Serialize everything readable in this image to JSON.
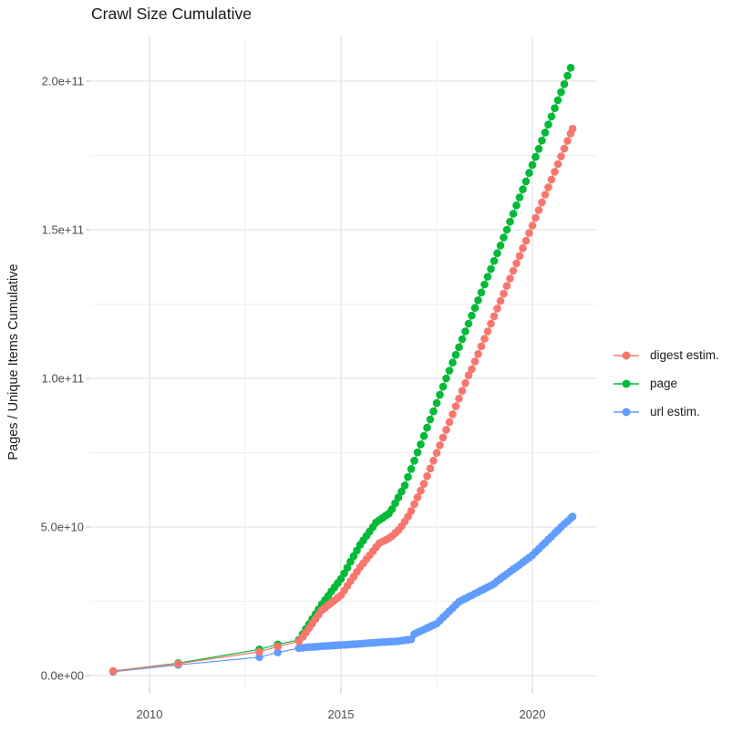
{
  "title": "Crawl Size Cumulative",
  "colors": {
    "digest": "#F8766D",
    "page": "#00BA38",
    "url": "#619CFF",
    "grid_major": "#e5e5e5",
    "grid_minor": "#f0f0f0",
    "tick_mark": "#c2c2c2",
    "tick_label": "#4d4d4d",
    "text": "#1a1a1a",
    "background": "#ffffff"
  },
  "y_axis": {
    "label": "Pages / Unique Items Cumulative",
    "ticks": [
      {
        "label": "0.0e+00",
        "value": 0
      },
      {
        "label": "5.0e+10",
        "value": 50
      },
      {
        "label": "1.0e+11",
        "value": 100
      },
      {
        "label": "1.5e+11",
        "value": 150
      },
      {
        "label": "2.0e+11",
        "value": 200
      }
    ],
    "minor_ticks": [
      25,
      75,
      125,
      175
    ]
  },
  "x_axis": {
    "ticks": [
      {
        "label": "2010",
        "value": 2010
      },
      {
        "label": "2015",
        "value": 2015
      },
      {
        "label": "2020",
        "value": 2020
      }
    ],
    "minor_ticks": [
      2012.5,
      2017.5
    ]
  },
  "legend": {
    "position": "right",
    "entries": [
      {
        "label": "digest estim.",
        "color": "#F8766D"
      },
      {
        "label": "page",
        "color": "#00BA38"
      },
      {
        "label": "url estim.",
        "color": "#619CFF"
      }
    ]
  },
  "chart_data": {
    "type": "line",
    "style": "points connected by thin lines (ggplot-like)",
    "title": "Crawl Size Cumulative",
    "xlabel": "",
    "ylabel": "Pages / Unique Items Cumulative",
    "x_unit": "year (decimal)",
    "value_unit_multiplier": 1000000000.0,
    "value_note": "point values below are in billions (multiply by 1e9 to get axis units)",
    "xlim": [
      2008.45,
      2021.7
    ],
    "ylim_billions": [
      -4,
      215
    ],
    "grid": true,
    "legend_position": "right",
    "draw_order": [
      "url estim.",
      "page",
      "digest estim."
    ],
    "series": [
      {
        "name": "digest estim.",
        "color": "#F8766D",
        "points": [
          [
            2009.05,
            1.5
          ],
          [
            2010.75,
            4.0
          ],
          [
            2012.87,
            8.0
          ],
          [
            2013.35,
            9.8
          ],
          [
            2013.9,
            11.5
          ],
          [
            2014.0,
            13.0
          ],
          [
            2014.083,
            14.5
          ],
          [
            2014.167,
            16.0
          ],
          [
            2014.25,
            17.5
          ],
          [
            2014.333,
            19.0
          ],
          [
            2014.417,
            20.5
          ],
          [
            2014.5,
            22.0
          ],
          [
            2014.583,
            22.8
          ],
          [
            2014.667,
            23.7
          ],
          [
            2014.75,
            24.5
          ],
          [
            2014.833,
            25.3
          ],
          [
            2014.917,
            26.2
          ],
          [
            2015.0,
            27.0
          ],
          [
            2015.083,
            28.6
          ],
          [
            2015.167,
            30.2
          ],
          [
            2015.25,
            31.8
          ],
          [
            2015.333,
            33.3
          ],
          [
            2015.417,
            34.9
          ],
          [
            2015.5,
            36.5
          ],
          [
            2015.583,
            37.8
          ],
          [
            2015.667,
            39.2
          ],
          [
            2015.75,
            40.5
          ],
          [
            2015.833,
            41.8
          ],
          [
            2015.917,
            43.2
          ],
          [
            2016.0,
            44.5
          ],
          [
            2016.083,
            45.1
          ],
          [
            2016.167,
            45.6
          ],
          [
            2016.25,
            46.2
          ],
          [
            2016.333,
            46.9
          ],
          [
            2016.417,
            47.9
          ],
          [
            2016.5,
            48.9
          ],
          [
            2016.583,
            50.2
          ],
          [
            2016.667,
            51.8
          ],
          [
            2016.75,
            53.5
          ],
          [
            2016.833,
            55.4
          ],
          [
            2016.917,
            57.7
          ],
          [
            2017.0,
            60.0
          ],
          [
            2017.083,
            62.2
          ],
          [
            2017.167,
            64.5
          ],
          [
            2017.25,
            67.1
          ],
          [
            2017.333,
            69.7
          ],
          [
            2017.417,
            72.3
          ],
          [
            2017.5,
            74.9
          ],
          [
            2017.583,
            77.5
          ],
          [
            2017.667,
            80.1
          ],
          [
            2017.75,
            82.7
          ],
          [
            2017.833,
            85.3
          ],
          [
            2017.917,
            87.9
          ],
          [
            2018.0,
            90.6
          ],
          [
            2018.083,
            93.2
          ],
          [
            2018.167,
            95.8
          ],
          [
            2018.25,
            98.4
          ],
          [
            2018.333,
            101.0
          ],
          [
            2018.417,
            103.1
          ],
          [
            2018.5,
            105.7
          ],
          [
            2018.583,
            108.2
          ],
          [
            2018.667,
            110.8
          ],
          [
            2018.75,
            113.3
          ],
          [
            2018.833,
            115.8
          ],
          [
            2018.917,
            118.4
          ],
          [
            2019.0,
            120.9
          ],
          [
            2019.083,
            123.5
          ],
          [
            2019.167,
            126.0
          ],
          [
            2019.25,
            128.5
          ],
          [
            2019.333,
            131.1
          ],
          [
            2019.417,
            133.6
          ],
          [
            2019.5,
            136.2
          ],
          [
            2019.583,
            138.7
          ],
          [
            2019.667,
            141.2
          ],
          [
            2019.75,
            143.8
          ],
          [
            2019.833,
            146.3
          ],
          [
            2019.917,
            148.9
          ],
          [
            2020.0,
            151.4
          ],
          [
            2020.083,
            154.0
          ],
          [
            2020.167,
            156.6
          ],
          [
            2020.25,
            159.2
          ],
          [
            2020.333,
            161.8
          ],
          [
            2020.417,
            164.3
          ],
          [
            2020.5,
            166.9
          ],
          [
            2020.583,
            169.5
          ],
          [
            2020.667,
            172.1
          ],
          [
            2020.75,
            174.7
          ],
          [
            2020.833,
            177.3
          ],
          [
            2020.917,
            179.9
          ],
          [
            2021.0,
            182.4
          ],
          [
            2021.05,
            184.0
          ]
        ]
      },
      {
        "name": "page",
        "color": "#00BA38",
        "points": [
          [
            2009.05,
            1.5
          ],
          [
            2010.75,
            4.2
          ],
          [
            2012.87,
            8.8
          ],
          [
            2013.35,
            10.5
          ],
          [
            2013.9,
            12.0
          ],
          [
            2014.0,
            14.0
          ],
          [
            2014.083,
            15.7
          ],
          [
            2014.167,
            17.3
          ],
          [
            2014.25,
            19.0
          ],
          [
            2014.333,
            20.7
          ],
          [
            2014.417,
            22.3
          ],
          [
            2014.5,
            24.0
          ],
          [
            2014.583,
            25.4
          ],
          [
            2014.667,
            26.8
          ],
          [
            2014.75,
            28.3
          ],
          [
            2014.833,
            29.7
          ],
          [
            2014.917,
            31.1
          ],
          [
            2015.0,
            32.5
          ],
          [
            2015.083,
            34.4
          ],
          [
            2015.167,
            36.3
          ],
          [
            2015.25,
            38.3
          ],
          [
            2015.333,
            40.2
          ],
          [
            2015.417,
            42.1
          ],
          [
            2015.5,
            44.0
          ],
          [
            2015.583,
            45.5
          ],
          [
            2015.667,
            47.0
          ],
          [
            2015.75,
            48.5
          ],
          [
            2015.833,
            50.0
          ],
          [
            2015.917,
            51.5
          ],
          [
            2016.0,
            52.3
          ],
          [
            2016.083,
            53.0
          ],
          [
            2016.167,
            53.8
          ],
          [
            2016.25,
            54.5
          ],
          [
            2016.333,
            56.0
          ],
          [
            2016.417,
            58.0
          ],
          [
            2016.5,
            59.9
          ],
          [
            2016.583,
            61.9
          ],
          [
            2016.667,
            64.0
          ],
          [
            2016.75,
            66.8
          ],
          [
            2016.833,
            69.5
          ],
          [
            2016.917,
            72.3
          ],
          [
            2017.0,
            75.1
          ],
          [
            2017.083,
            77.8
          ],
          [
            2017.167,
            80.6
          ],
          [
            2017.25,
            83.4
          ],
          [
            2017.333,
            86.2
          ],
          [
            2017.417,
            88.9
          ],
          [
            2017.5,
            91.7
          ],
          [
            2017.583,
            94.5
          ],
          [
            2017.667,
            97.2
          ],
          [
            2017.75,
            100.0
          ],
          [
            2017.833,
            102.6
          ],
          [
            2017.917,
            105.3
          ],
          [
            2018.0,
            107.9
          ],
          [
            2018.083,
            110.5
          ],
          [
            2018.167,
            113.2
          ],
          [
            2018.25,
            115.8
          ],
          [
            2018.333,
            118.4
          ],
          [
            2018.417,
            121.1
          ],
          [
            2018.5,
            123.7
          ],
          [
            2018.583,
            126.3
          ],
          [
            2018.667,
            128.9
          ],
          [
            2018.75,
            131.6
          ],
          [
            2018.833,
            134.2
          ],
          [
            2018.917,
            136.8
          ],
          [
            2019.0,
            139.5
          ],
          [
            2019.083,
            142.1
          ],
          [
            2019.167,
            144.7
          ],
          [
            2019.25,
            147.4
          ],
          [
            2019.333,
            150.0
          ],
          [
            2019.417,
            152.7
          ],
          [
            2019.5,
            155.4
          ],
          [
            2019.583,
            158.2
          ],
          [
            2019.667,
            160.9
          ],
          [
            2019.75,
            163.6
          ],
          [
            2019.833,
            166.3
          ],
          [
            2019.917,
            169.1
          ],
          [
            2020.0,
            171.8
          ],
          [
            2020.083,
            174.5
          ],
          [
            2020.167,
            177.2
          ],
          [
            2020.25,
            180.0
          ],
          [
            2020.333,
            182.7
          ],
          [
            2020.417,
            185.4
          ],
          [
            2020.5,
            188.1
          ],
          [
            2020.583,
            190.9
          ],
          [
            2020.667,
            193.6
          ],
          [
            2020.75,
            196.3
          ],
          [
            2020.833,
            199.0
          ],
          [
            2020.917,
            201.8
          ],
          [
            2021.0,
            204.5
          ]
        ]
      },
      {
        "name": "url estim.",
        "color": "#619CFF",
        "points": [
          [
            2009.05,
            1.3
          ],
          [
            2010.75,
            3.6
          ],
          [
            2012.87,
            6.2
          ],
          [
            2013.35,
            7.8
          ],
          [
            2013.9,
            9.2
          ],
          [
            2014.0,
            9.4
          ],
          [
            2014.083,
            9.5
          ],
          [
            2014.167,
            9.6
          ],
          [
            2014.25,
            9.65
          ],
          [
            2014.333,
            9.7
          ],
          [
            2014.417,
            9.8
          ],
          [
            2014.5,
            9.9
          ],
          [
            2014.583,
            9.95
          ],
          [
            2014.667,
            10.0
          ],
          [
            2014.75,
            10.1
          ],
          [
            2014.833,
            10.15
          ],
          [
            2014.917,
            10.2
          ],
          [
            2015.0,
            10.3
          ],
          [
            2015.083,
            10.35
          ],
          [
            2015.167,
            10.4
          ],
          [
            2015.25,
            10.5
          ],
          [
            2015.333,
            10.55
          ],
          [
            2015.417,
            10.6
          ],
          [
            2015.5,
            10.7
          ],
          [
            2015.583,
            10.8
          ],
          [
            2015.667,
            10.9
          ],
          [
            2015.75,
            10.95
          ],
          [
            2015.833,
            11.0
          ],
          [
            2015.917,
            11.1
          ],
          [
            2016.0,
            11.2
          ],
          [
            2016.083,
            11.25
          ],
          [
            2016.167,
            11.3
          ],
          [
            2016.25,
            11.4
          ],
          [
            2016.333,
            11.45
          ],
          [
            2016.417,
            11.5
          ],
          [
            2016.5,
            11.6
          ],
          [
            2016.583,
            11.75
          ],
          [
            2016.667,
            11.9
          ],
          [
            2016.75,
            12.05
          ],
          [
            2016.833,
            12.2
          ],
          [
            2016.917,
            14.0
          ],
          [
            2017.0,
            14.5
          ],
          [
            2017.083,
            15.0
          ],
          [
            2017.167,
            15.5
          ],
          [
            2017.25,
            16.0
          ],
          [
            2017.333,
            16.5
          ],
          [
            2017.417,
            17.0
          ],
          [
            2017.5,
            17.5
          ],
          [
            2017.583,
            18.5
          ],
          [
            2017.667,
            19.6
          ],
          [
            2017.75,
            20.6
          ],
          [
            2017.833,
            21.7
          ],
          [
            2017.917,
            22.7
          ],
          [
            2018.0,
            23.8
          ],
          [
            2018.083,
            24.8
          ],
          [
            2018.167,
            25.4
          ],
          [
            2018.25,
            25.9
          ],
          [
            2018.333,
            26.5
          ],
          [
            2018.417,
            27.0
          ],
          [
            2018.5,
            27.6
          ],
          [
            2018.583,
            28.1
          ],
          [
            2018.667,
            28.7
          ],
          [
            2018.75,
            29.2
          ],
          [
            2018.833,
            29.8
          ],
          [
            2018.917,
            30.3
          ],
          [
            2019.0,
            30.9
          ],
          [
            2019.083,
            31.8
          ],
          [
            2019.167,
            32.6
          ],
          [
            2019.25,
            33.4
          ],
          [
            2019.333,
            34.2
          ],
          [
            2019.417,
            35.0
          ],
          [
            2019.5,
            35.8
          ],
          [
            2019.583,
            36.5
          ],
          [
            2019.667,
            37.3
          ],
          [
            2019.75,
            38.1
          ],
          [
            2019.833,
            38.9
          ],
          [
            2019.917,
            39.7
          ],
          [
            2020.0,
            40.5
          ],
          [
            2020.083,
            41.6
          ],
          [
            2020.167,
            42.6
          ],
          [
            2020.25,
            43.7
          ],
          [
            2020.333,
            44.7
          ],
          [
            2020.417,
            45.8
          ],
          [
            2020.5,
            46.8
          ],
          [
            2020.583,
            47.9
          ],
          [
            2020.667,
            48.9
          ],
          [
            2020.75,
            50.0
          ],
          [
            2020.833,
            51.0
          ],
          [
            2020.917,
            51.9
          ],
          [
            2021.0,
            52.9
          ],
          [
            2021.05,
            53.5
          ]
        ]
      }
    ]
  }
}
